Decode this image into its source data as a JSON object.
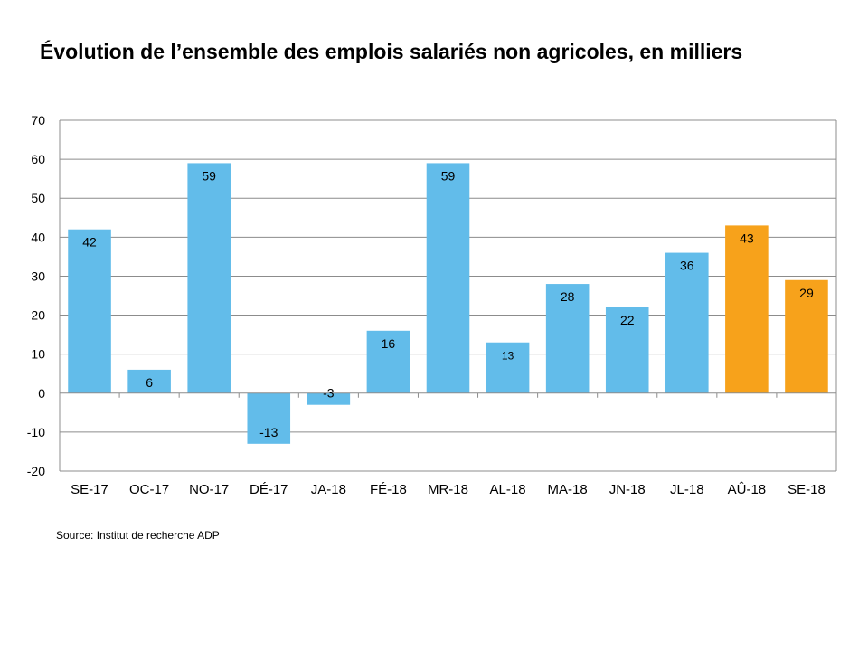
{
  "title": "Évolution de l’ensemble des emplois salariés non agricoles, en milliers",
  "source": "Source: Institut de recherche ADP",
  "colors": {
    "standard": "#62bcea",
    "highlight": "#f7a21b",
    "grid": "#8c8c8c",
    "text": "#000000"
  },
  "chart_data": {
    "type": "bar",
    "title": "Évolution de l’ensemble des emplois salariés non agricoles, en milliers",
    "categories": [
      "SE-17",
      "OC-17",
      "NO-17",
      "DÉ-17",
      "JA-18",
      "FÉ-18",
      "MR-18",
      "AL-18",
      "MA-18",
      "JN-18",
      "JL-18",
      "AÛ-18",
      "SE-18"
    ],
    "values": [
      42,
      6,
      59,
      -13,
      -3,
      16,
      59,
      13,
      28,
      22,
      36,
      43,
      29
    ],
    "data_labels": [
      "42",
      "6",
      "59",
      "-13",
      "-3",
      "16",
      "59",
      "13",
      "28",
      "22",
      "36",
      "43",
      "29"
    ],
    "highlighted": [
      false,
      false,
      false,
      false,
      false,
      false,
      false,
      false,
      false,
      false,
      false,
      true,
      true
    ],
    "xlabel": "",
    "ylabel": "",
    "ylim": [
      -20,
      70
    ],
    "yticks": [
      -20,
      -10,
      0,
      10,
      20,
      30,
      40,
      50,
      60,
      70
    ],
    "grid": true,
    "legend": "none"
  }
}
